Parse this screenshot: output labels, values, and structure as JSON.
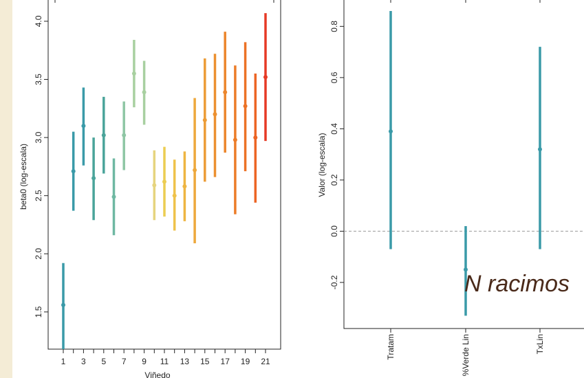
{
  "annotation": "N racimos",
  "chart_data": [
    {
      "type": "scatter",
      "subtype": "interval",
      "title": "",
      "xlabel": "Viñedo",
      "ylabel": "beta0 (log-escala)",
      "xlim": [
        0.5,
        21.5
      ],
      "ylim": [
        1.18,
        4.1
      ],
      "x_ticks": [
        1,
        3,
        5,
        7,
        9,
        11,
        13,
        15,
        17,
        19,
        21
      ],
      "y_ticks": [
        1.5,
        2.0,
        2.5,
        3.0,
        3.5,
        4.0
      ],
      "y_tick_labels": [
        "1.5",
        "2.0",
        "2.5",
        "3.0",
        "3.5",
        "4.0"
      ],
      "x_tick_labels": [
        "1",
        "3",
        "5",
        "7",
        "9",
        "11",
        "13",
        "15",
        "17",
        "19",
        "21"
      ],
      "grid": false,
      "points": [
        {
          "x": 1,
          "y": 1.56,
          "lo": 1.18,
          "hi": 1.92,
          "color": "#3a9aa8"
        },
        {
          "x": 2,
          "y": 2.71,
          "lo": 2.37,
          "hi": 3.05,
          "color": "#3a9aa8"
        },
        {
          "x": 3,
          "y": 3.1,
          "lo": 2.76,
          "hi": 3.43,
          "color": "#3a9aa8"
        },
        {
          "x": 4,
          "y": 2.65,
          "lo": 2.29,
          "hi": 3.0,
          "color": "#4aa49a"
        },
        {
          "x": 5,
          "y": 3.02,
          "lo": 2.69,
          "hi": 3.35,
          "color": "#4aa49a"
        },
        {
          "x": 6,
          "y": 2.49,
          "lo": 2.16,
          "hi": 2.82,
          "color": "#6eb8a2"
        },
        {
          "x": 7,
          "y": 3.02,
          "lo": 2.72,
          "hi": 3.31,
          "color": "#8ec6a4"
        },
        {
          "x": 8,
          "y": 3.55,
          "lo": 3.26,
          "hi": 3.84,
          "color": "#a8d0a0"
        },
        {
          "x": 9,
          "y": 3.39,
          "lo": 3.11,
          "hi": 3.66,
          "color": "#a8d0a0"
        },
        {
          "x": 10,
          "y": 2.59,
          "lo": 2.29,
          "hi": 2.89,
          "color": "#e6d47e"
        },
        {
          "x": 11,
          "y": 2.62,
          "lo": 2.32,
          "hi": 2.92,
          "color": "#eccd52"
        },
        {
          "x": 12,
          "y": 2.5,
          "lo": 2.2,
          "hi": 2.81,
          "color": "#efc24a"
        },
        {
          "x": 13,
          "y": 2.58,
          "lo": 2.28,
          "hi": 2.88,
          "color": "#eeb542"
        },
        {
          "x": 14,
          "y": 2.72,
          "lo": 2.09,
          "hi": 3.34,
          "color": "#eda83c"
        },
        {
          "x": 15,
          "y": 3.15,
          "lo": 2.62,
          "hi": 3.68,
          "color": "#ec9c36"
        },
        {
          "x": 16,
          "y": 3.2,
          "lo": 2.66,
          "hi": 3.72,
          "color": "#ec9030"
        },
        {
          "x": 17,
          "y": 3.39,
          "lo": 2.87,
          "hi": 3.91,
          "color": "#ec862c"
        },
        {
          "x": 18,
          "y": 2.98,
          "lo": 2.34,
          "hi": 3.62,
          "color": "#ec7c28"
        },
        {
          "x": 19,
          "y": 3.27,
          "lo": 2.71,
          "hi": 3.82,
          "color": "#ec7226"
        },
        {
          "x": 20,
          "y": 3.0,
          "lo": 2.44,
          "hi": 3.55,
          "color": "#ec6424"
        },
        {
          "x": 21,
          "y": 3.52,
          "lo": 2.97,
          "hi": 4.07,
          "color": "#e63a26"
        }
      ]
    },
    {
      "type": "scatter",
      "subtype": "interval",
      "title": "",
      "xlabel": "",
      "ylabel": "Valor (log-escala)",
      "ylim": [
        -0.38,
        0.86
      ],
      "y_ticks": [
        -0.2,
        0.0,
        0.2,
        0.4,
        0.6,
        0.8
      ],
      "y_tick_labels": [
        "-0.2",
        "0.0",
        "0.2",
        "0.4",
        "0.6",
        "0.8"
      ],
      "categories": [
        "Tratam",
        "%Verde Lin",
        "TxLin"
      ],
      "reference_line": 0.0,
      "grid": false,
      "points": [
        {
          "x": "Tratam",
          "y": 0.39,
          "lo": -0.07,
          "hi": 0.86,
          "color": "#3a9aa8"
        },
        {
          "x": "%Verde Lin",
          "y": -0.15,
          "lo": -0.33,
          "hi": 0.02,
          "color": "#3a9aa8"
        },
        {
          "x": "TxLin",
          "y": 0.32,
          "lo": -0.07,
          "hi": 0.72,
          "color": "#3a9aa8"
        }
      ]
    }
  ]
}
